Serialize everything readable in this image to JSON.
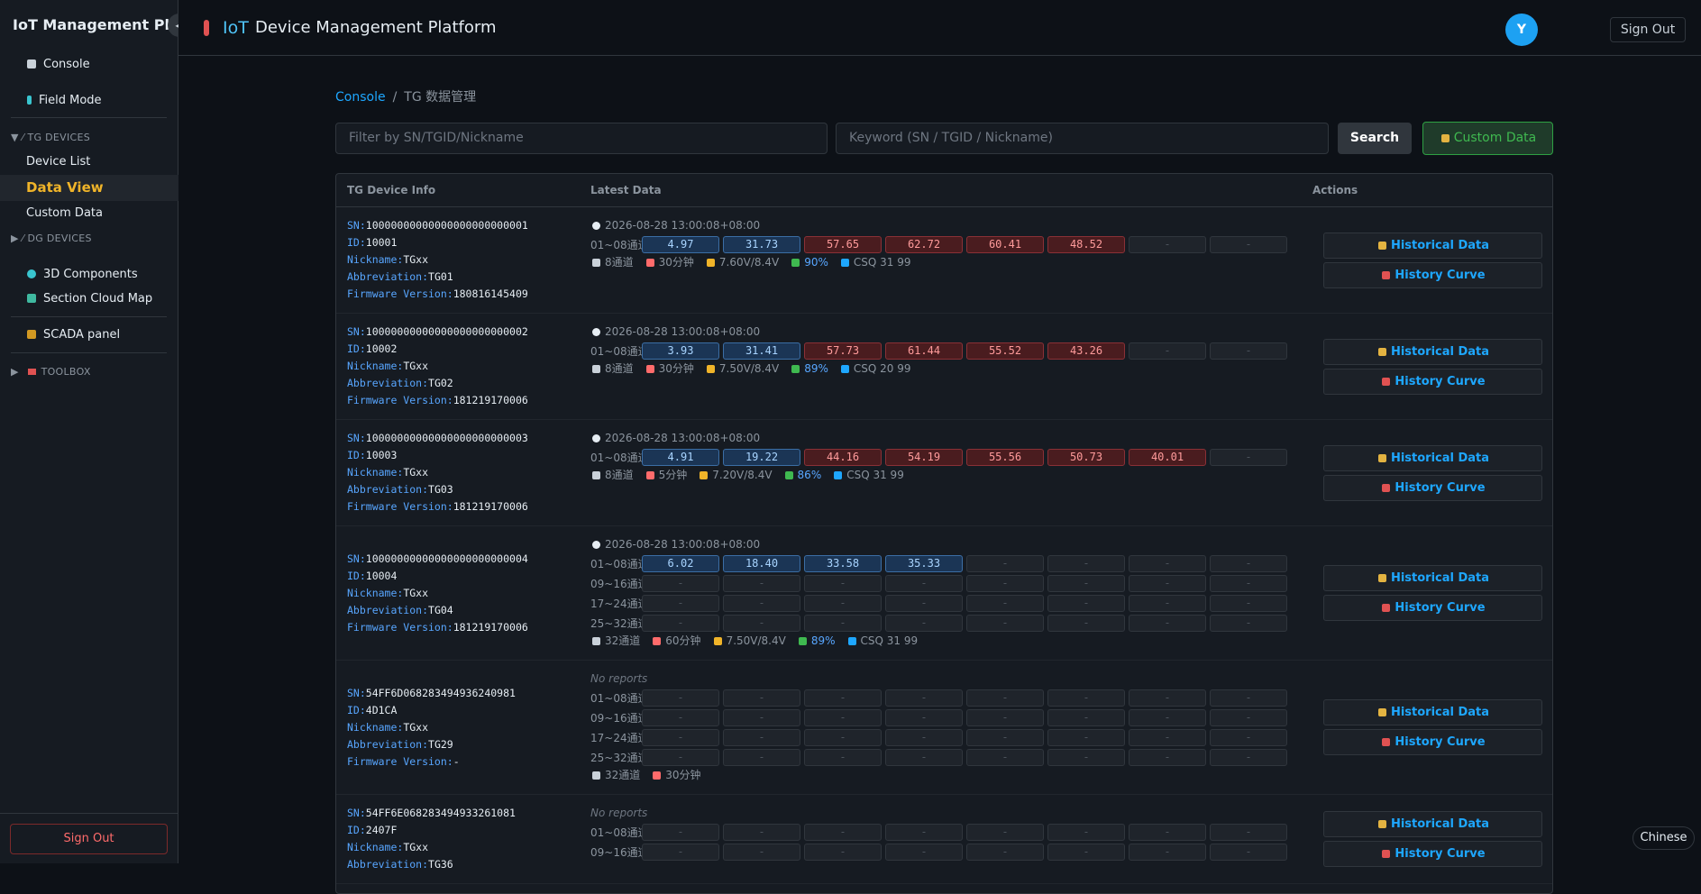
{
  "sidebar": {
    "title": "IoT Management Plat",
    "menu": [
      "Console",
      "Field Mode",
      "TG DEVICES",
      "Device List",
      "Data View",
      "Custom Data",
      "DG DEVICES",
      "3D Components",
      "Section Cloud Map",
      "SCADA panel",
      "TOOLBOX"
    ],
    "sign_out": "Sign Out"
  },
  "header": {
    "brand": "IoT",
    "title": "Device Management Platform",
    "avatar": "Y",
    "sign_out": "Sign Out"
  },
  "breadcrumb": [
    "Console",
    "/",
    "TG 数据管理"
  ],
  "toolbar": {
    "filter_placeholder": "Filter by SN/TGID/Nickname",
    "keyword_placeholder": "Keyword (SN / TGID / Nickname)",
    "search": "Search",
    "custom_data": "Custom Data"
  },
  "table": {
    "headers": [
      "TG Device Info",
      "Latest Data",
      "Actions"
    ],
    "labels": {
      "sn": "SN:",
      "id": "ID:",
      "nickname": "Nickname:",
      "abbreviation": "Abbreviation:",
      "firmware": "Firmware Version:"
    },
    "actions": [
      "Historical Data",
      "History Curve"
    ],
    "devices": [
      {
        "sn": "10000000000000000000000001",
        "id": "10001",
        "nickname": "TGxx",
        "abbreviation": "TG01",
        "firmware": "180816145409",
        "time": "2026-08-28 13:00:08+08:00",
        "rows": [
          {
            "label": "01~08通道",
            "values": [
              "4.97",
              "31.73",
              "57.65",
              "62.72",
              "60.41",
              "48.52",
              "-",
              "-"
            ],
            "colors": [
              "blue",
              "blue",
              "red",
              "red",
              "red",
              "red",
              "gray",
              "gray"
            ]
          }
        ],
        "footer": {
          "channels": "8通道",
          "interval": "30分钟",
          "voltage": "7.60V/8.4V",
          "battery": "90%",
          "csq": "CSQ 31 99"
        }
      },
      {
        "sn": "10000000000000000000000002",
        "id": "10002",
        "nickname": "TGxx",
        "abbreviation": "TG02",
        "firmware": "181219170006",
        "time": "2026-08-28 13:00:08+08:00",
        "rows": [
          {
            "label": "01~08通道",
            "values": [
              "3.93",
              "31.41",
              "57.73",
              "61.44",
              "55.52",
              "43.26",
              "-",
              "-"
            ],
            "colors": [
              "blue",
              "blue",
              "red",
              "red",
              "red",
              "red",
              "gray",
              "gray"
            ]
          }
        ],
        "footer": {
          "channels": "8通道",
          "interval": "30分钟",
          "voltage": "7.50V/8.4V",
          "battery": "89%",
          "csq": "CSQ 20 99"
        }
      },
      {
        "sn": "10000000000000000000000003",
        "id": "10003",
        "nickname": "TGxx",
        "abbreviation": "TG03",
        "firmware": "181219170006",
        "time": "2026-08-28 13:00:08+08:00",
        "rows": [
          {
            "label": "01~08通道",
            "values": [
              "4.91",
              "19.22",
              "44.16",
              "54.19",
              "55.56",
              "50.73",
              "40.01",
              "-"
            ],
            "colors": [
              "blue",
              "blue",
              "red",
              "red",
              "red",
              "red",
              "red",
              "gray"
            ]
          }
        ],
        "footer": {
          "channels": "8通道",
          "interval": "5分钟",
          "voltage": "7.20V/8.4V",
          "battery": "86%",
          "csq": "CSQ 31 99"
        }
      },
      {
        "sn": "10000000000000000000000004",
        "id": "10004",
        "nickname": "TGxx",
        "abbreviation": "TG04",
        "firmware": "181219170006",
        "time": "2026-08-28 13:00:08+08:00",
        "rows": [
          {
            "label": "01~08通道",
            "values": [
              "6.02",
              "18.40",
              "33.58",
              "35.33",
              "-",
              "-",
              "-",
              "-"
            ],
            "colors": [
              "blue",
              "blue",
              "blue",
              "blue",
              "gray",
              "gray",
              "gray",
              "gray"
            ]
          },
          {
            "label": "09~16通道",
            "values": [
              "-",
              "-",
              "-",
              "-",
              "-",
              "-",
              "-",
              "-"
            ],
            "colors": [
              "gray",
              "gray",
              "gray",
              "gray",
              "gray",
              "gray",
              "gray",
              "gray"
            ]
          },
          {
            "label": "17~24通道",
            "values": [
              "-",
              "-",
              "-",
              "-",
              "-",
              "-",
              "-",
              "-"
            ],
            "colors": [
              "gray",
              "gray",
              "gray",
              "gray",
              "gray",
              "gray",
              "gray",
              "gray"
            ]
          },
          {
            "label": "25~32通道",
            "values": [
              "-",
              "-",
              "-",
              "-",
              "-",
              "-",
              "-",
              "-"
            ],
            "colors": [
              "gray",
              "gray",
              "gray",
              "gray",
              "gray",
              "gray",
              "gray",
              "gray"
            ]
          }
        ],
        "footer": {
          "channels": "32通道",
          "interval": "60分钟",
          "voltage": "7.50V/8.4V",
          "battery": "89%",
          "csq": "CSQ 31 99"
        }
      },
      {
        "sn": "54FF6D068283494936240981",
        "id": "4D1CA",
        "nickname": "TGxx",
        "abbreviation": "TG29",
        "firmware": "-",
        "status": "No reports",
        "rows": [
          {
            "label": "01~08通道",
            "values": [
              "-",
              "-",
              "-",
              "-",
              "-",
              "-",
              "-",
              "-"
            ],
            "colors": [
              "gray",
              "gray",
              "gray",
              "gray",
              "gray",
              "gray",
              "gray",
              "gray"
            ]
          },
          {
            "label": "09~16通道",
            "values": [
              "-",
              "-",
              "-",
              "-",
              "-",
              "-",
              "-",
              "-"
            ],
            "colors": [
              "gray",
              "gray",
              "gray",
              "gray",
              "gray",
              "gray",
              "gray",
              "gray"
            ]
          },
          {
            "label": "17~24通道",
            "values": [
              "-",
              "-",
              "-",
              "-",
              "-",
              "-",
              "-",
              "-"
            ],
            "colors": [
              "gray",
              "gray",
              "gray",
              "gray",
              "gray",
              "gray",
              "gray",
              "gray"
            ]
          },
          {
            "label": "25~32通道",
            "values": [
              "-",
              "-",
              "-",
              "-",
              "-",
              "-",
              "-",
              "-"
            ],
            "colors": [
              "gray",
              "gray",
              "gray",
              "gray",
              "gray",
              "gray",
              "gray",
              "gray"
            ]
          }
        ],
        "footer": {
          "channels": "32通道",
          "interval": "30分钟"
        }
      },
      {
        "sn": "54FF6E068283494933261081",
        "id": "2407F",
        "nickname": "TGxx",
        "abbreviation": "TG36",
        "status": "No reports",
        "rows": [
          {
            "label": "01~08通道",
            "values": [
              "-",
              "-",
              "-",
              "-",
              "-",
              "-",
              "-",
              "-"
            ],
            "colors": [
              "gray",
              "gray",
              "gray",
              "gray",
              "gray",
              "gray",
              "gray",
              "gray"
            ]
          },
          {
            "label": "09~16通道",
            "values": [
              "-",
              "-",
              "-",
              "-",
              "-",
              "-",
              "-",
              "-"
            ],
            "colors": [
              "gray",
              "gray",
              "gray",
              "gray",
              "gray",
              "gray",
              "gray",
              "gray"
            ]
          }
        ]
      }
    ]
  },
  "language": "Chinese"
}
